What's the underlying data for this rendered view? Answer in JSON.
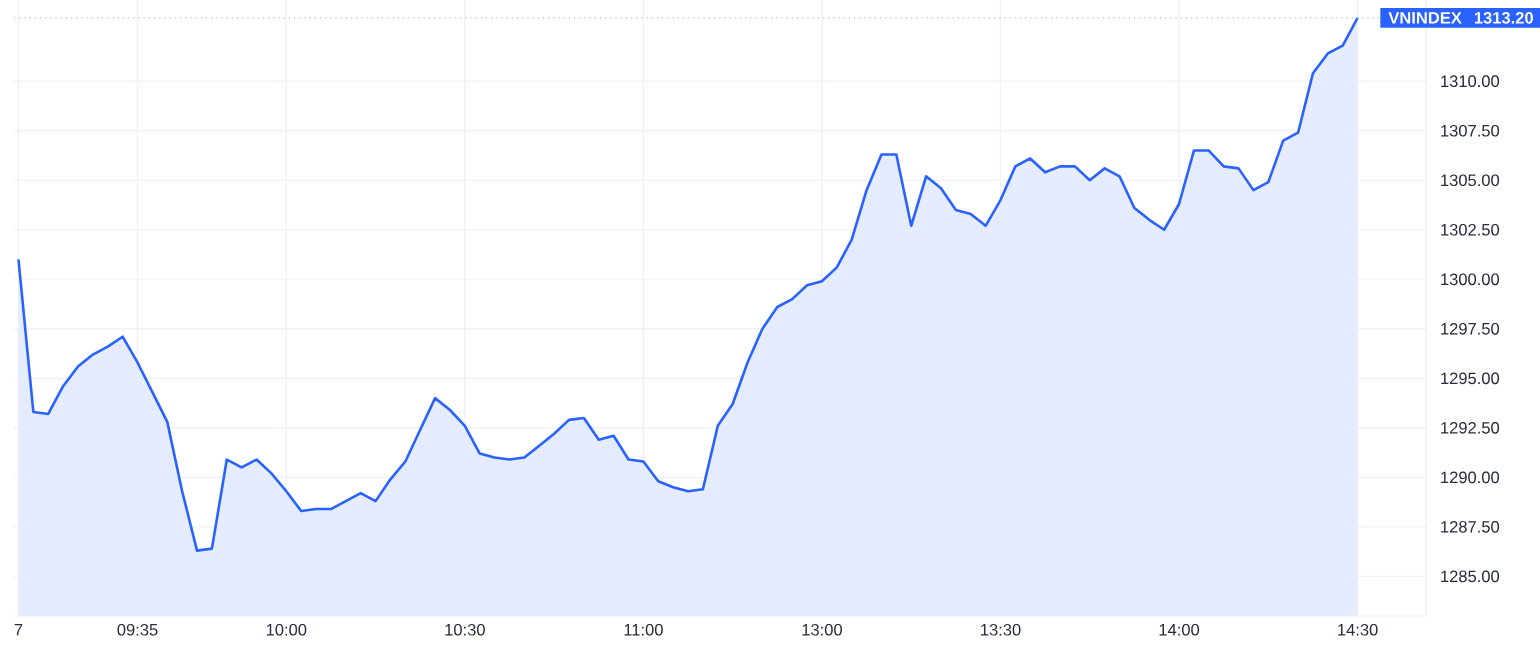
{
  "chart_data": {
    "type": "area",
    "categories": [
      "7",
      null,
      null,
      null,
      null,
      null,
      null,
      null,
      "09:35",
      null,
      null,
      null,
      null,
      null,
      null,
      null,
      null,
      null,
      "10:00",
      null,
      null,
      null,
      null,
      null,
      null,
      null,
      null,
      null,
      null,
      null,
      "10:30",
      null,
      null,
      null,
      null,
      null,
      null,
      null,
      null,
      null,
      null,
      null,
      "11:00",
      null,
      null,
      null,
      null,
      null,
      null,
      null,
      null,
      null,
      null,
      null,
      "13:00",
      null,
      null,
      null,
      null,
      null,
      null,
      null,
      null,
      null,
      null,
      null,
      "13:30",
      null,
      null,
      null,
      null,
      null,
      null,
      null,
      null,
      null,
      null,
      null,
      "14:00",
      null,
      null,
      null,
      null,
      null,
      null,
      null,
      null,
      null,
      null,
      null,
      "14:30"
    ],
    "series": [
      {
        "name": "VNINDEX",
        "color": "#2962ff",
        "values": [
          1301.0,
          1293.3,
          1293.2,
          1294.6,
          1295.6,
          1296.2,
          1296.6,
          1297.1,
          1295.8,
          1294.3,
          1292.8,
          1289.3,
          1286.3,
          1286.4,
          1290.9,
          1290.5,
          1290.9,
          1290.2,
          1289.3,
          1288.3,
          1288.4,
          1288.4,
          1288.8,
          1289.2,
          1288.8,
          1289.9,
          1290.8,
          1292.4,
          1294.0,
          1293.4,
          1292.6,
          1291.2,
          1291.0,
          1290.9,
          1291.0,
          1291.6,
          1292.2,
          1292.9,
          1293.0,
          1291.9,
          1292.1,
          1290.9,
          1290.8,
          1289.8,
          1289.5,
          1289.3,
          1289.4,
          1292.6,
          1293.7,
          1295.8,
          1297.5,
          1298.6,
          1299.0,
          1299.7,
          1299.9,
          1300.6,
          1302.0,
          1304.5,
          1306.3,
          1306.3,
          1302.7,
          1305.2,
          1304.6,
          1303.5,
          1303.3,
          1302.7,
          1304.0,
          1305.7,
          1306.1,
          1305.4,
          1305.7,
          1305.7,
          1305.0,
          1305.6,
          1305.2,
          1303.6,
          1303.0,
          1302.5,
          1303.8,
          1306.5,
          1306.5,
          1305.7,
          1305.6,
          1304.5,
          1304.9,
          1307.0,
          1307.4,
          1310.4,
          1311.4,
          1311.8,
          1313.2
        ]
      }
    ],
    "ylim": [
      1283,
      1314.1
    ],
    "yticks": [
      {
        "value": 1285,
        "label": "1285.00"
      },
      {
        "value": 1287.5,
        "label": "1287.50"
      },
      {
        "value": 1290,
        "label": "1290.00"
      },
      {
        "value": 1292.5,
        "label": "1292.50"
      },
      {
        "value": 1295,
        "label": "1295.00"
      },
      {
        "value": 1297.5,
        "label": "1297.50"
      },
      {
        "value": 1300,
        "label": "1300.00"
      },
      {
        "value": 1302.5,
        "label": "1302.50"
      },
      {
        "value": 1305,
        "label": "1305.00"
      },
      {
        "value": 1307.5,
        "label": "1307.50"
      },
      {
        "value": 1310,
        "label": "1310.00"
      }
    ],
    "ref_lines": [
      {
        "axis": "y",
        "value": 1313.2,
        "label": "1313.20",
        "color": "#9fb8ff",
        "line_style": "dotted"
      }
    ],
    "grid": true,
    "legend": false,
    "marker": "none",
    "line_style": "solid"
  }
}
